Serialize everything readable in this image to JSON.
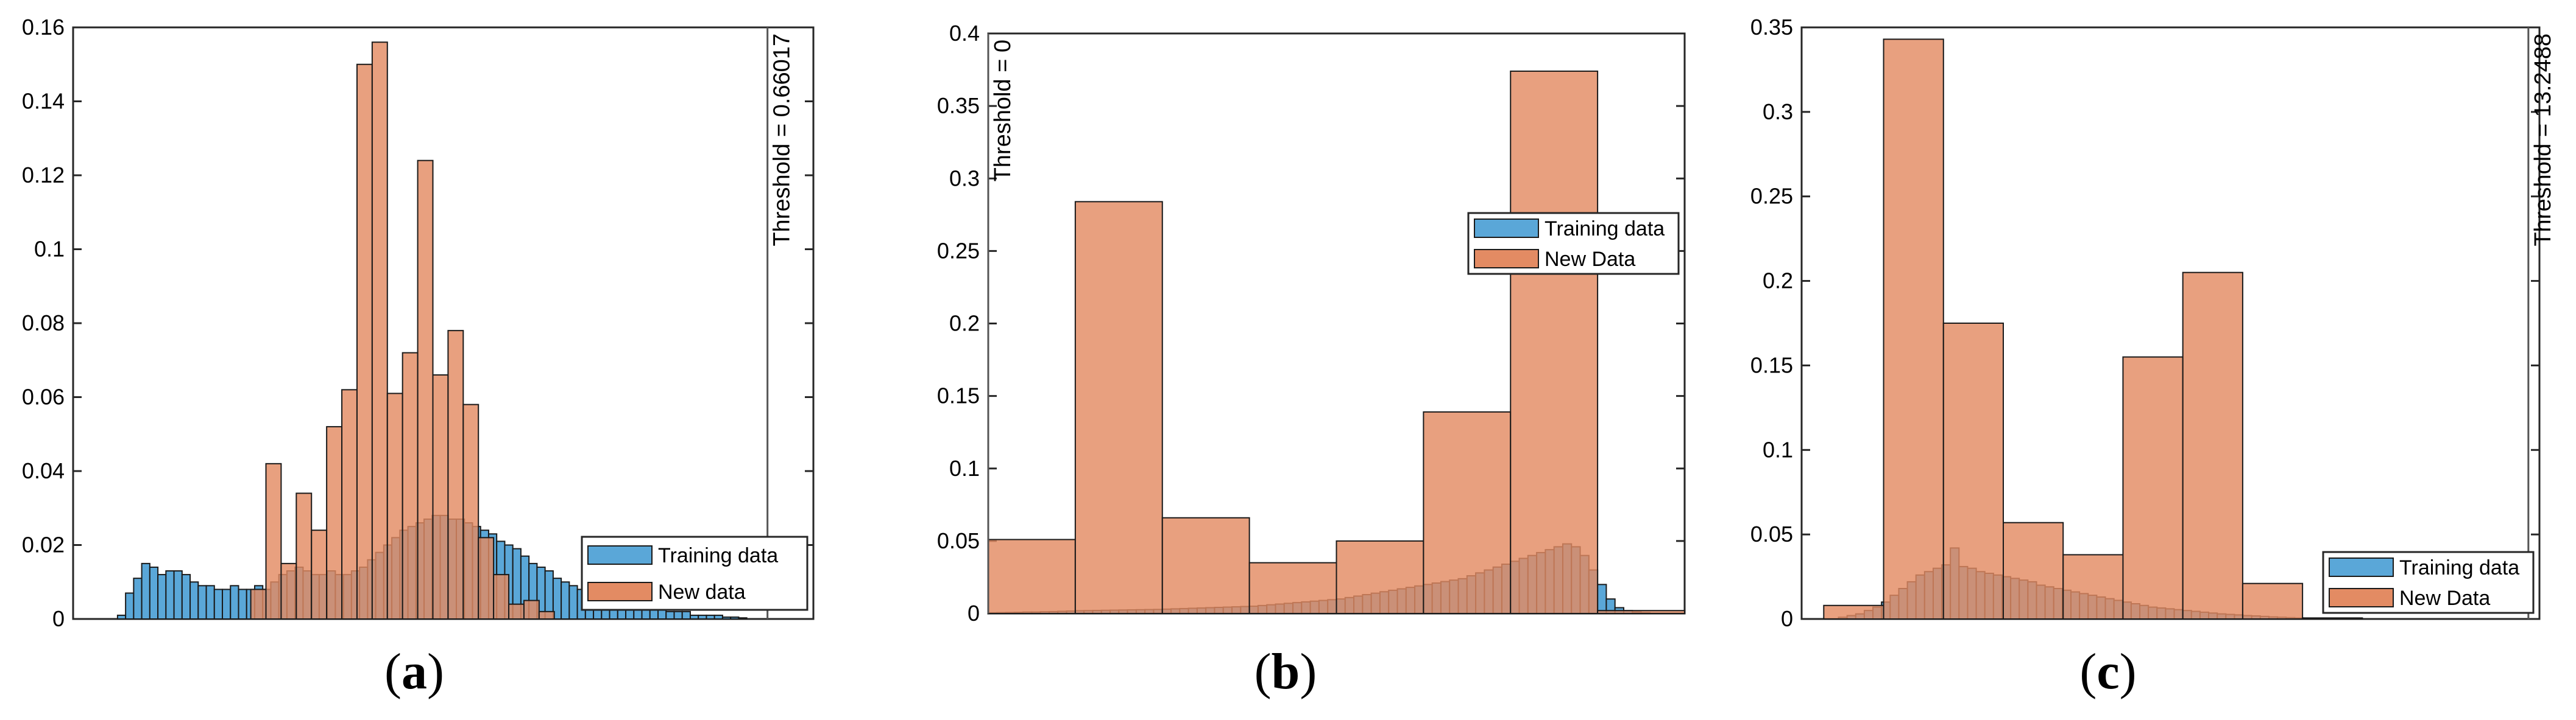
{
  "colors": {
    "training": "#5aa7d8",
    "new": "#e38b63",
    "overlap": "#9a5a40",
    "edge": "#1a1a1a",
    "axis": "#262626"
  },
  "chart_data": [
    {
      "type": "bar",
      "panel": "a",
      "label_text": "a",
      "ylim": [
        0,
        0.16
      ],
      "xlim": [
        0,
        1
      ],
      "yticks": [
        "0",
        "0.02",
        "0.04",
        "0.06",
        "0.08",
        "0.1",
        "0.12",
        "0.14",
        "0.16"
      ],
      "threshold_label": "Threshold = 0.66017",
      "threshold_x": 0.938,
      "legend": [
        "Training data",
        "New data"
      ],
      "legend_position": "bottom-right",
      "series": [
        {
          "name": "Training data",
          "x0": 0.06,
          "x1": 0.91,
          "values": [
            0.001,
            0.007,
            0.011,
            0.015,
            0.014,
            0.012,
            0.013,
            0.013,
            0.012,
            0.01,
            0.009,
            0.009,
            0.008,
            0.008,
            0.009,
            0.008,
            0.008,
            0.009,
            0.008,
            0.01,
            0.012,
            0.013,
            0.014,
            0.013,
            0.012,
            0.012,
            0.013,
            0.012,
            0.012,
            0.013,
            0.014,
            0.016,
            0.018,
            0.02,
            0.022,
            0.024,
            0.025,
            0.026,
            0.027,
            0.028,
            0.028,
            0.027,
            0.027,
            0.026,
            0.025,
            0.024,
            0.023,
            0.021,
            0.02,
            0.019,
            0.017,
            0.015,
            0.014,
            0.013,
            0.011,
            0.01,
            0.009,
            0.008,
            0.008,
            0.007,
            0.006,
            0.006,
            0.005,
            0.005,
            0.004,
            0.004,
            0.003,
            0.003,
            0.002,
            0.002,
            0.002,
            0.001,
            0.001,
            0.001,
            0.001,
            0.0005,
            0.0005,
            0.0003
          ]
        },
        {
          "name": "New data",
          "x0": 0.24,
          "x1": 0.65,
          "values": [
            0.008,
            0.042,
            0.015,
            0.034,
            0.024,
            0.052,
            0.062,
            0.15,
            0.156,
            0.061,
            0.072,
            0.124,
            0.066,
            0.078,
            0.058,
            0.022,
            0.012,
            0.004,
            0.005,
            0.002
          ]
        }
      ]
    },
    {
      "type": "bar",
      "panel": "b",
      "label_text": "b",
      "ylim": [
        0,
        0.4
      ],
      "xlim": [
        0,
        1
      ],
      "yticks": [
        "0",
        "0.05",
        "0.1",
        "0.15",
        "0.2",
        "0.25",
        "0.3",
        "0.35",
        "0.4"
      ],
      "threshold_label": "Threshold = 0",
      "threshold_x": 0.0,
      "legend": [
        "Training data",
        "New Data"
      ],
      "legend_position": "upper-right",
      "series": [
        {
          "name": "Training data",
          "x0": 0.0,
          "x1": 0.95,
          "values": [
            0.0005,
            0.0006,
            0.0007,
            0.0008,
            0.001,
            0.001,
            0.0012,
            0.0013,
            0.0015,
            0.0017,
            0.0019,
            0.002,
            0.0021,
            0.0022,
            0.0023,
            0.0024,
            0.0025,
            0.0026,
            0.0027,
            0.0028,
            0.003,
            0.0032,
            0.0034,
            0.0036,
            0.0038,
            0.004,
            0.0042,
            0.0044,
            0.0046,
            0.0048,
            0.005,
            0.0055,
            0.006,
            0.0065,
            0.007,
            0.0075,
            0.008,
            0.0085,
            0.009,
            0.0095,
            0.01,
            0.011,
            0.012,
            0.013,
            0.014,
            0.015,
            0.016,
            0.017,
            0.018,
            0.019,
            0.02,
            0.021,
            0.022,
            0.023,
            0.024,
            0.026,
            0.028,
            0.03,
            0.032,
            0.034,
            0.036,
            0.038,
            0.04,
            0.042,
            0.044,
            0.046,
            0.048,
            0.046,
            0.04,
            0.03,
            0.02,
            0.01,
            0.004,
            0.002,
            0.001,
            0.0006
          ]
        },
        {
          "name": "New Data",
          "x0": 0.0,
          "x1": 1.0,
          "values": [
            0.051,
            0.284,
            0.066,
            0.035,
            0.05,
            0.139,
            0.374,
            0.002
          ]
        }
      ]
    },
    {
      "type": "bar",
      "panel": "c",
      "label_text": "c",
      "ylim": [
        0,
        0.35
      ],
      "xlim": [
        0,
        1
      ],
      "yticks": [
        "0",
        "0.05",
        "0.1",
        "0.15",
        "0.2",
        "0.25",
        "0.3",
        "0.35"
      ],
      "threshold_label": "Threshold = 13.2488",
      "threshold_x": 0.985,
      "legend": [
        "Training data",
        "New Data"
      ],
      "legend_position": "bottom-right",
      "series": [
        {
          "name": "Training data",
          "x0": 0.05,
          "x1": 0.75,
          "values": [
            0.001,
            0.002,
            0.003,
            0.005,
            0.007,
            0.01,
            0.014,
            0.018,
            0.022,
            0.026,
            0.028,
            0.03,
            0.032,
            0.042,
            0.031,
            0.03,
            0.028,
            0.027,
            0.026,
            0.025,
            0.024,
            0.023,
            0.022,
            0.02,
            0.019,
            0.018,
            0.017,
            0.016,
            0.015,
            0.014,
            0.013,
            0.012,
            0.011,
            0.01,
            0.009,
            0.008,
            0.007,
            0.0065,
            0.006,
            0.0055,
            0.005,
            0.0045,
            0.004,
            0.0035,
            0.003,
            0.0027,
            0.0024,
            0.002,
            0.0018,
            0.0015,
            0.0012,
            0.001,
            0.0008,
            0.0006,
            0.0005,
            0.0004,
            0.0003,
            0.0002,
            0.0002,
            0.0001
          ]
        },
        {
          "name": "New Data",
          "x0": 0.03,
          "x1": 0.76,
          "values": [
            0.008,
            0.343,
            0.175,
            0.057,
            0.038,
            0.155,
            0.205,
            0.021,
            0.0006
          ]
        }
      ]
    }
  ]
}
